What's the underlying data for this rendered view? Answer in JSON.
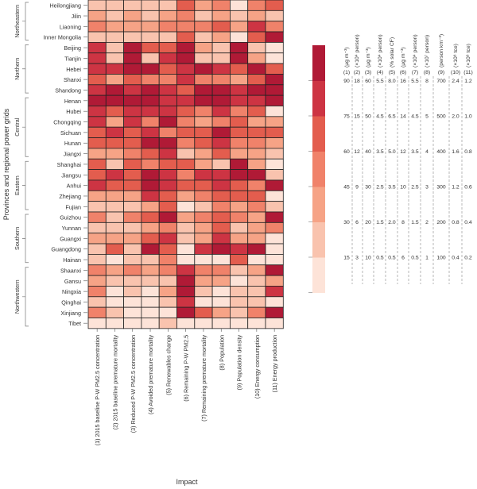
{
  "chart_data": {
    "type": "heatmap",
    "xlabel": "Impact",
    "ylabel": "Provinces and regional power grids",
    "columns": [
      "(1) 2015 baseline P-W PM2.5 concentration",
      "(2) 2015 baseline premature mortality",
      "(3) Reduced P-W PM2.5 concentration",
      "(4) Avoided premature mortality",
      "(5) Renewables change",
      "(6) Remaining P-W PM2.5",
      "(7) Remaining premature mortality",
      "(8) Population",
      "(9) Population density",
      "(10) Energy consumption",
      "(11) Energy production"
    ],
    "column_numbers": [
      "(1)",
      "(2)",
      "(3)",
      "(4)",
      "(5)",
      "(6)",
      "(7)",
      "(8)",
      "(9)",
      "(10)",
      "(11)"
    ],
    "units": [
      "(µg m⁻³)",
      "(×10⁴ person)",
      "(µg m⁻³)",
      "(×10⁴ person)",
      "(% solar CF)",
      "(µg m⁻³)",
      "(×10⁴ person)",
      "(×10⁷ person)",
      "(person km⁻²)",
      "(×10⁸ tce)",
      "(×10⁸ tce)"
    ],
    "legend_breaks": [
      [
        "15",
        "30",
        "45",
        "60",
        "75",
        "90"
      ],
      [
        "3",
        "6",
        "9",
        "12",
        "15",
        "18"
      ],
      [
        "10",
        "20",
        "30",
        "40",
        "50",
        "60"
      ],
      [
        "0.5",
        "1.5",
        "2.5",
        "3.5",
        "4.5",
        "5.5"
      ],
      [
        "0.5",
        "2.0",
        "3.5",
        "5.0",
        "6.5",
        "8.0"
      ],
      [
        "6",
        "8",
        "10",
        "12",
        "14",
        "16"
      ],
      [
        "0.5",
        "1.5",
        "2.5",
        "3.5",
        "4.5",
        "5.5"
      ],
      [
        "1",
        "2",
        "3",
        "4",
        "5",
        "8"
      ],
      [
        "100",
        "200",
        "300",
        "400",
        "500",
        "700"
      ],
      [
        "0.4",
        "0.8",
        "1.2",
        "1.6",
        "2.0",
        "2.4"
      ],
      [
        "0.2",
        "0.4",
        "0.6",
        "0.8",
        "1.0",
        "1.2"
      ]
    ],
    "colors": [
      "#fde3d8",
      "#f9c3ae",
      "#f6a386",
      "#f0826a",
      "#e35d4e",
      "#cd3443",
      "#b01a36"
    ],
    "regions": [
      {
        "name": "Northeastern",
        "rows": [
          "Heilongjiang",
          "Jilin",
          "Liaoning",
          "Inner Mongolia"
        ]
      },
      {
        "name": "Northern",
        "rows": [
          "Beijing",
          "Tianjin",
          "Hebei",
          "Shanxi",
          "Shandong"
        ]
      },
      {
        "name": "Central",
        "rows": [
          "Henan",
          "Hubei",
          "Chongqing",
          "Sichuan",
          "Hunan",
          "Jiangxi"
        ]
      },
      {
        "name": "Eastern",
        "rows": [
          "Shanghai",
          "Jiangsu",
          "Anhui",
          "Zhejiang",
          "Fujian"
        ]
      },
      {
        "name": "Southern",
        "rows": [
          "Guizhou",
          "Yunnan",
          "Guangxi",
          "Guangdong",
          "Hainan"
        ]
      },
      {
        "name": "Northwestern",
        "rows": [
          "Shaanxi",
          "Gansu",
          "Ningxia",
          "Qinghai",
          "Xinjiang",
          "Tibet"
        ]
      }
    ],
    "bin_levels": [
      [
        1,
        1,
        1,
        1,
        1,
        4,
        2,
        3,
        0,
        3,
        4
      ],
      [
        2,
        1,
        2,
        1,
        2,
        3,
        1,
        2,
        1,
        2,
        1
      ],
      [
        3,
        2,
        2,
        2,
        3,
        3,
        3,
        4,
        2,
        5,
        3
      ],
      [
        1,
        1,
        1,
        1,
        1,
        4,
        1,
        2,
        0,
        4,
        6
      ],
      [
        5,
        1,
        6,
        4,
        4,
        6,
        2,
        1,
        6,
        1,
        0
      ],
      [
        5,
        1,
        6,
        1,
        5,
        6,
        1,
        1,
        6,
        2,
        0
      ],
      [
        5,
        5,
        6,
        6,
        4,
        5,
        6,
        5,
        4,
        6,
        4
      ],
      [
        4,
        2,
        4,
        3,
        3,
        5,
        3,
        3,
        2,
        4,
        6
      ],
      [
        5,
        6,
        5,
        6,
        5,
        4,
        6,
        6,
        5,
        6,
        6
      ],
      [
        6,
        6,
        6,
        6,
        5,
        5,
        6,
        6,
        5,
        5,
        6
      ],
      [
        5,
        4,
        5,
        5,
        5,
        4,
        3,
        5,
        3,
        4,
        0
      ],
      [
        5,
        2,
        5,
        3,
        6,
        3,
        2,
        3,
        4,
        2,
        2
      ],
      [
        4,
        5,
        4,
        5,
        3,
        4,
        4,
        6,
        4,
        4,
        4
      ],
      [
        4,
        4,
        4,
        6,
        6,
        3,
        4,
        5,
        3,
        3,
        2
      ],
      [
        2,
        2,
        3,
        4,
        5,
        1,
        2,
        4,
        2,
        2,
        1
      ],
      [
        4,
        1,
        4,
        3,
        4,
        4,
        2,
        1,
        6,
        2,
        0
      ],
      [
        4,
        5,
        4,
        6,
        5,
        3,
        5,
        5,
        6,
        6,
        1
      ],
      [
        5,
        4,
        4,
        6,
        5,
        4,
        4,
        5,
        4,
        3,
        6
      ],
      [
        2,
        2,
        2,
        5,
        4,
        2,
        3,
        4,
        4,
        4,
        0
      ],
      [
        1,
        1,
        1,
        2,
        4,
        0,
        1,
        3,
        2,
        3,
        1
      ],
      [
        3,
        1,
        3,
        4,
        6,
        2,
        3,
        4,
        3,
        2,
        6
      ],
      [
        1,
        1,
        1,
        2,
        3,
        1,
        2,
        4,
        1,
        2,
        3
      ],
      [
        2,
        2,
        2,
        4,
        5,
        1,
        2,
        5,
        2,
        2,
        0
      ],
      [
        1,
        4,
        1,
        6,
        4,
        0,
        5,
        6,
        5,
        6,
        0
      ],
      [
        1,
        0,
        1,
        1,
        3,
        0,
        0,
        0,
        4,
        0,
        0
      ],
      [
        3,
        2,
        3,
        2,
        3,
        5,
        3,
        3,
        1,
        2,
        6
      ],
      [
        2,
        1,
        1,
        1,
        1,
        6,
        2,
        2,
        0,
        1,
        2
      ],
      [
        3,
        0,
        1,
        0,
        2,
        6,
        1,
        0,
        1,
        1,
        5
      ],
      [
        1,
        0,
        0,
        0,
        1,
        5,
        0,
        0,
        1,
        1,
        0
      ],
      [
        3,
        1,
        0,
        0,
        0,
        6,
        4,
        2,
        1,
        3,
        6
      ],
      [
        0,
        0,
        0,
        0,
        1,
        0,
        0,
        0,
        0,
        0,
        0
      ]
    ]
  }
}
